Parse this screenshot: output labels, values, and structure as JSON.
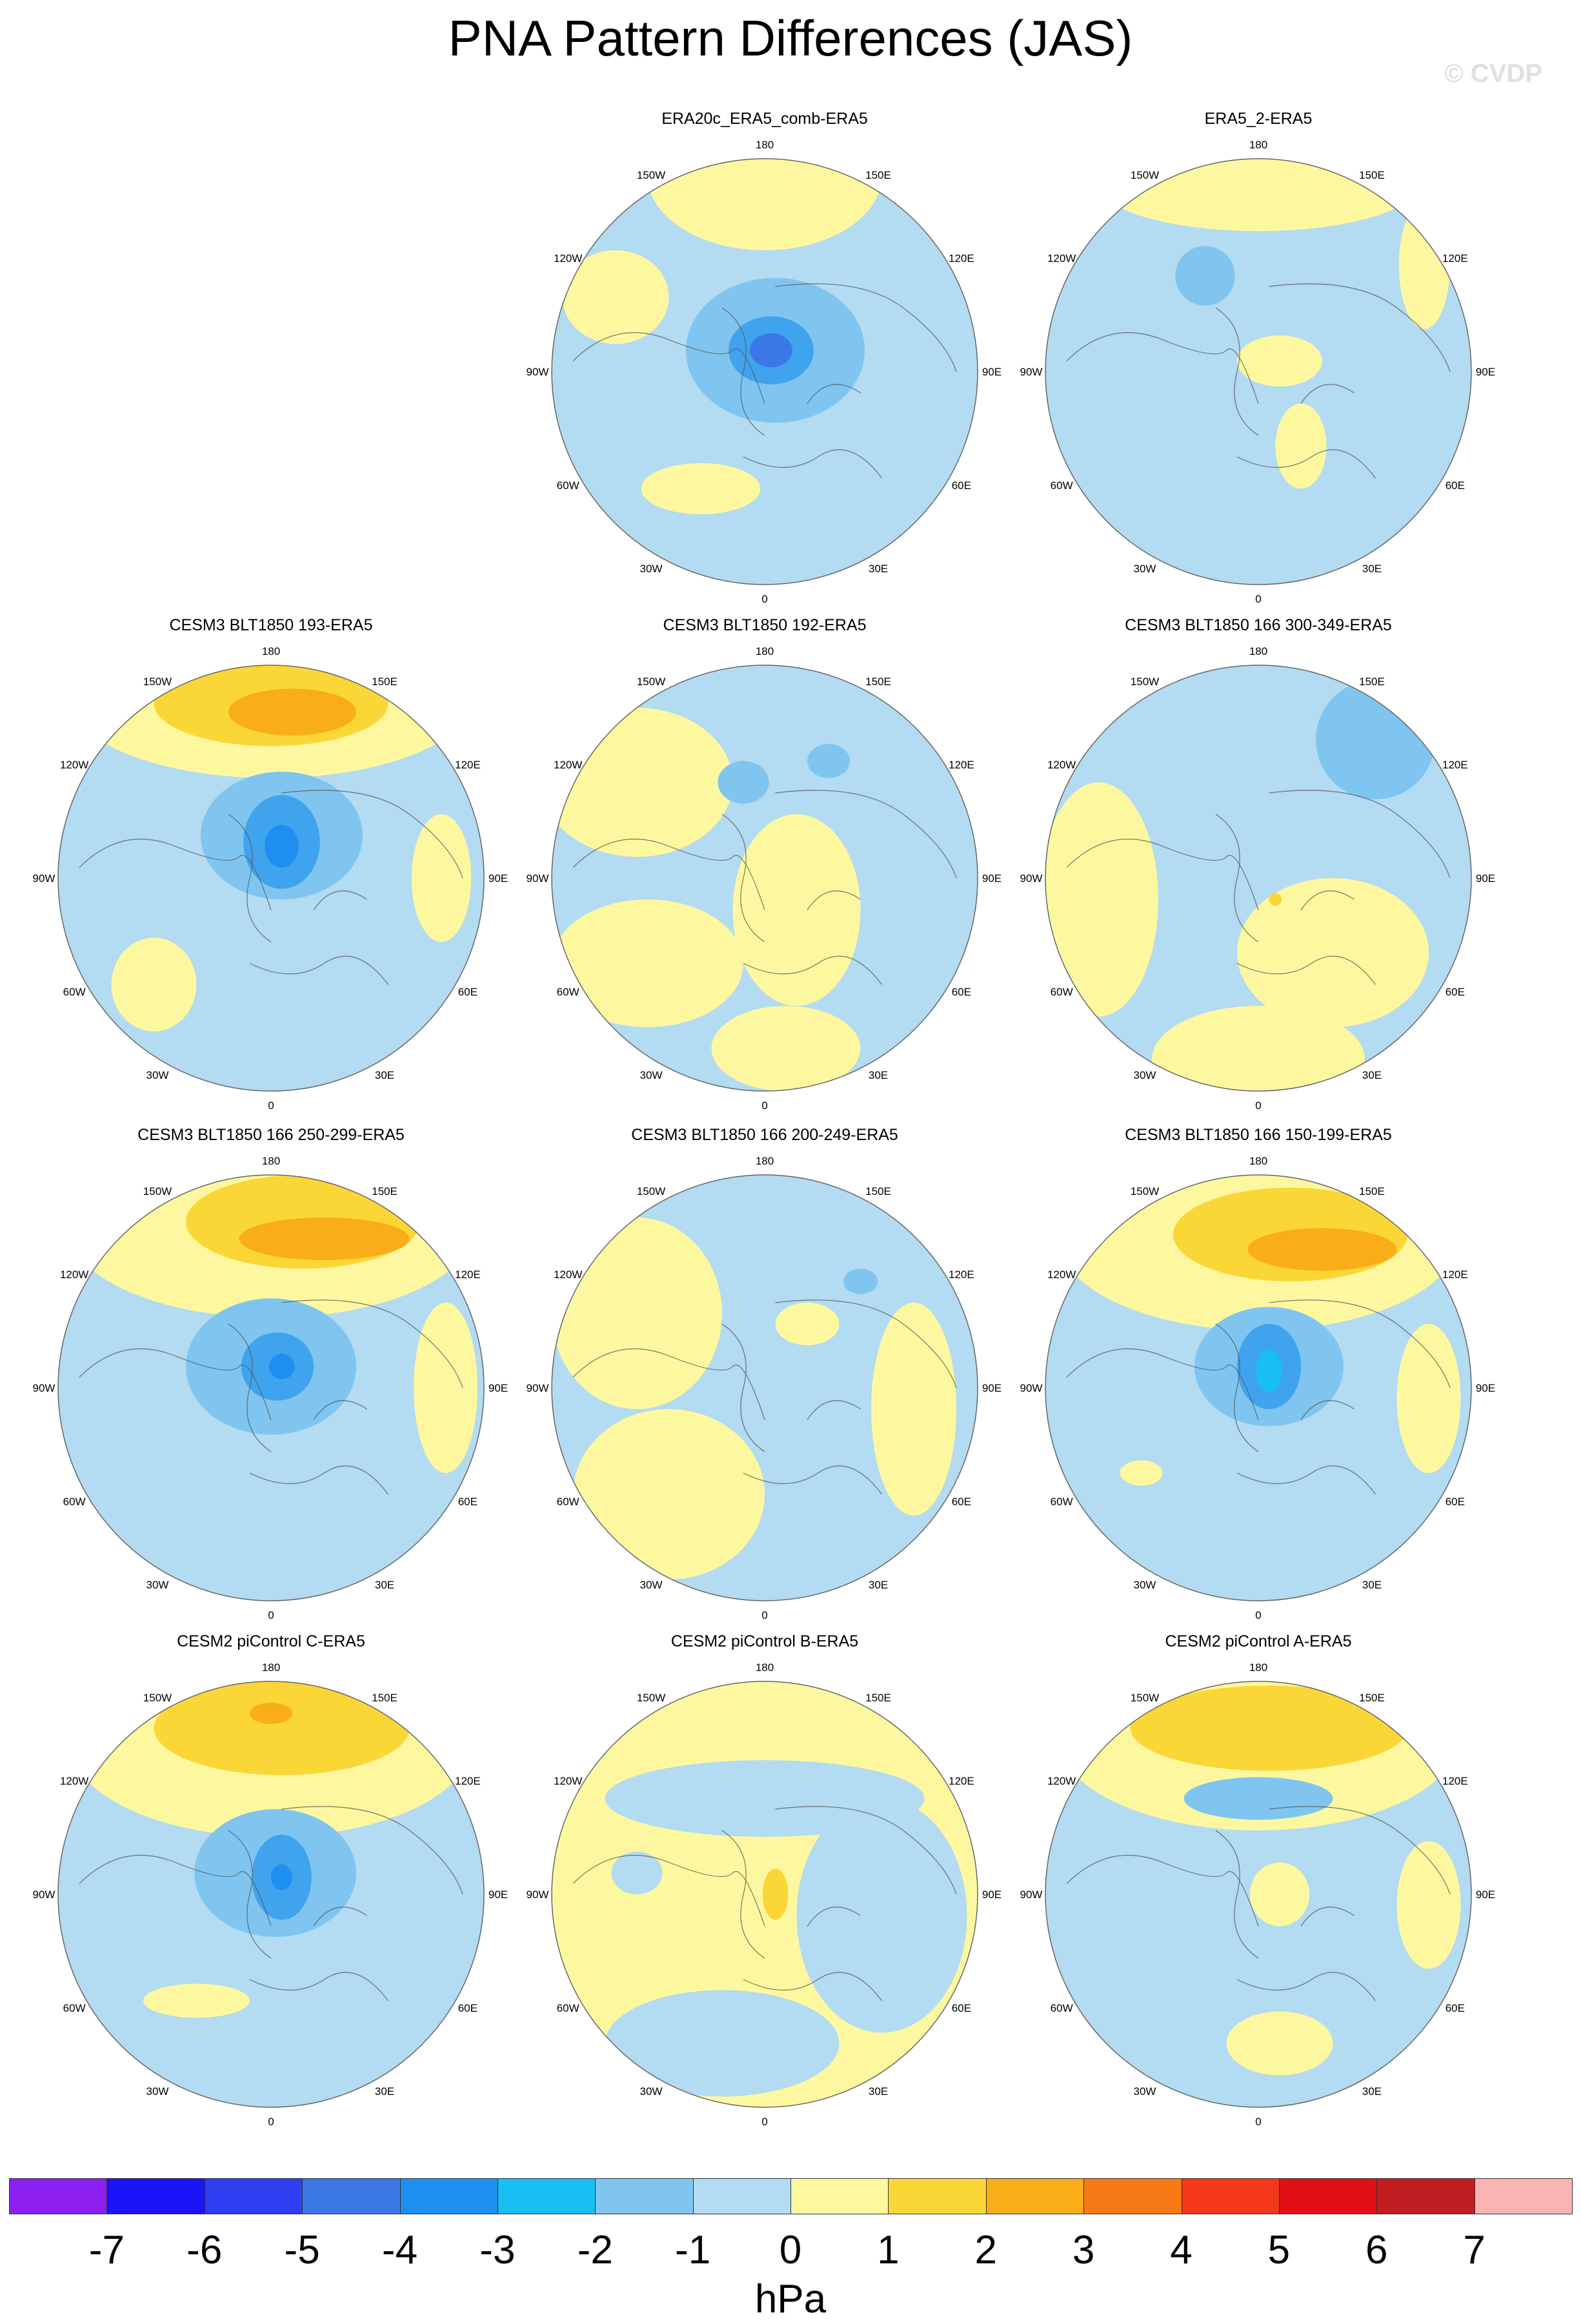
{
  "title": "PNA Pattern Differences (JAS)",
  "watermark": "© CVDP",
  "panels": [
    {
      "id": "p1",
      "title": "ERA20c_ERA5_comb-ERA5",
      "base": "#b3dbf1",
      "centers": [
        {
          "color": "#fdf8a0",
          "rx": 0.55,
          "ry": 0.35,
          "at": [
            0.0,
            -0.92
          ]
        },
        {
          "color": "#fdf8a0",
          "rx": 0.25,
          "ry": 0.22,
          "at": [
            -0.7,
            -0.35
          ]
        },
        {
          "color": "#fdf8a0",
          "rx": 0.28,
          "ry": 0.12,
          "at": [
            -0.3,
            0.55
          ]
        },
        {
          "color": "#7fc5ef",
          "rx": 0.42,
          "ry": 0.34,
          "at": [
            0.05,
            -0.1
          ]
        },
        {
          "color": "#40a3ee",
          "rx": 0.2,
          "ry": 0.16,
          "at": [
            0.03,
            -0.1
          ]
        },
        {
          "color": "#3a78e6",
          "rx": 0.1,
          "ry": 0.08,
          "at": [
            0.03,
            -0.1
          ]
        }
      ]
    },
    {
      "id": "p2",
      "title": "ERA5_2-ERA5",
      "base": "#b3dbf1",
      "centers": [
        {
          "color": "#fdf8a0",
          "rx": 0.75,
          "ry": 0.22,
          "at": [
            0.0,
            -0.88
          ]
        },
        {
          "color": "#fdf8a0",
          "rx": 0.2,
          "ry": 0.12,
          "at": [
            0.1,
            -0.05
          ]
        },
        {
          "color": "#fdf8a0",
          "rx": 0.12,
          "ry": 0.3,
          "at": [
            0.78,
            -0.5
          ]
        },
        {
          "color": "#fdf8a0",
          "rx": 0.12,
          "ry": 0.2,
          "at": [
            0.2,
            0.35
          ]
        },
        {
          "color": "#7fc5ef",
          "rx": 0.14,
          "ry": 0.14,
          "at": [
            -0.25,
            -0.45
          ]
        }
      ]
    },
    {
      "id": "p3",
      "title": "CESM3 BLT1850 193-ERA5",
      "base": "#b3dbf1",
      "centers": [
        {
          "color": "#fdf8a0",
          "rx": 0.95,
          "ry": 0.38,
          "at": [
            0.0,
            -0.85
          ]
        },
        {
          "color": "#fbd637",
          "rx": 0.55,
          "ry": 0.2,
          "at": [
            0.0,
            -0.82
          ]
        },
        {
          "color": "#f9ad18",
          "rx": 0.3,
          "ry": 0.11,
          "at": [
            0.1,
            -0.78
          ]
        },
        {
          "color": "#fdf8a0",
          "rx": 0.2,
          "ry": 0.22,
          "at": [
            -0.55,
            0.5
          ]
        },
        {
          "color": "#fdf8a0",
          "rx": 0.14,
          "ry": 0.3,
          "at": [
            0.8,
            0.0
          ]
        },
        {
          "color": "#7fc5ef",
          "rx": 0.38,
          "ry": 0.3,
          "at": [
            0.05,
            -0.2
          ]
        },
        {
          "color": "#40a3ee",
          "rx": 0.18,
          "ry": 0.22,
          "at": [
            0.05,
            -0.17
          ]
        },
        {
          "color": "#1e8ff0",
          "rx": 0.08,
          "ry": 0.1,
          "at": [
            0.05,
            -0.15
          ]
        }
      ]
    },
    {
      "id": "p4",
      "title": "CESM3 BLT1850 192-ERA5",
      "base": "#b3dbf1",
      "centers": [
        {
          "color": "#fdf8a0",
          "rx": 0.45,
          "ry": 0.35,
          "at": [
            -0.6,
            -0.45
          ]
        },
        {
          "color": "#fdf8a0",
          "rx": 0.3,
          "ry": 0.45,
          "at": [
            0.15,
            0.15
          ]
        },
        {
          "color": "#fdf8a0",
          "rx": 0.45,
          "ry": 0.3,
          "at": [
            -0.55,
            0.4
          ]
        },
        {
          "color": "#fdf8a0",
          "rx": 0.35,
          "ry": 0.2,
          "at": [
            0.1,
            0.8
          ]
        },
        {
          "color": "#7fc5ef",
          "rx": 0.12,
          "ry": 0.1,
          "at": [
            -0.1,
            -0.45
          ]
        },
        {
          "color": "#7fc5ef",
          "rx": 0.1,
          "ry": 0.08,
          "at": [
            0.3,
            -0.55
          ]
        }
      ]
    },
    {
      "id": "p5",
      "title": "CESM3 BLT1850 166 300-349-ERA5",
      "base": "#b3dbf1",
      "centers": [
        {
          "color": "#fdf8a0",
          "rx": 0.28,
          "ry": 0.55,
          "at": [
            -0.75,
            0.1
          ]
        },
        {
          "color": "#fdf8a0",
          "rx": 0.45,
          "ry": 0.35,
          "at": [
            0.35,
            0.35
          ]
        },
        {
          "color": "#fdf8a0",
          "rx": 0.5,
          "ry": 0.25,
          "at": [
            0.0,
            0.85
          ]
        },
        {
          "color": "#7fc5ef",
          "rx": 0.28,
          "ry": 0.28,
          "at": [
            0.55,
            -0.65
          ]
        },
        {
          "color": "#fbd637",
          "rx": 0.03,
          "ry": 0.03,
          "at": [
            0.08,
            0.1
          ]
        }
      ]
    },
    {
      "id": "p6",
      "title": "CESM3 BLT1850 166 250-299-ERA5",
      "base": "#b3dbf1",
      "centers": [
        {
          "color": "#fdf8a0",
          "rx": 0.95,
          "ry": 0.42,
          "at": [
            0.0,
            -0.75
          ]
        },
        {
          "color": "#fbd637",
          "rx": 0.55,
          "ry": 0.22,
          "at": [
            0.15,
            -0.78
          ]
        },
        {
          "color": "#f9ad18",
          "rx": 0.4,
          "ry": 0.1,
          "at": [
            0.25,
            -0.7
          ]
        },
        {
          "color": "#fdf8a0",
          "rx": 0.15,
          "ry": 0.4,
          "at": [
            0.82,
            0.0
          ]
        },
        {
          "color": "#7fc5ef",
          "rx": 0.4,
          "ry": 0.32,
          "at": [
            0.0,
            -0.1
          ]
        },
        {
          "color": "#40a3ee",
          "rx": 0.17,
          "ry": 0.16,
          "at": [
            0.03,
            -0.1
          ]
        },
        {
          "color": "#1e8ff0",
          "rx": 0.06,
          "ry": 0.06,
          "at": [
            0.05,
            -0.1
          ]
        }
      ]
    },
    {
      "id": "p7",
      "title": "CESM3 BLT1850 166 200-249-ERA5",
      "base": "#b3dbf1",
      "centers": [
        {
          "color": "#fdf8a0",
          "rx": 0.4,
          "ry": 0.45,
          "at": [
            -0.6,
            -0.35
          ]
        },
        {
          "color": "#fdf8a0",
          "rx": 0.45,
          "ry": 0.4,
          "at": [
            -0.45,
            0.5
          ]
        },
        {
          "color": "#fdf8a0",
          "rx": 0.2,
          "ry": 0.5,
          "at": [
            0.7,
            0.1
          ]
        },
        {
          "color": "#fdf8a0",
          "rx": 0.15,
          "ry": 0.1,
          "at": [
            0.2,
            -0.3
          ]
        },
        {
          "color": "#7fc5ef",
          "rx": 0.08,
          "ry": 0.06,
          "at": [
            0.45,
            -0.5
          ]
        }
      ]
    },
    {
      "id": "p8",
      "title": "CESM3 BLT1850 166 150-199-ERA5",
      "base": "#b3dbf1",
      "centers": [
        {
          "color": "#fdf8a0",
          "rx": 0.95,
          "ry": 0.45,
          "at": [
            0.0,
            -0.72
          ]
        },
        {
          "color": "#fbd637",
          "rx": 0.55,
          "ry": 0.22,
          "at": [
            0.15,
            -0.72
          ]
        },
        {
          "color": "#f9ad18",
          "rx": 0.35,
          "ry": 0.1,
          "at": [
            0.3,
            -0.65
          ]
        },
        {
          "color": "#fdf8a0",
          "rx": 0.15,
          "ry": 0.35,
          "at": [
            0.8,
            0.05
          ]
        },
        {
          "color": "#fdf8a0",
          "rx": 0.1,
          "ry": 0.06,
          "at": [
            -0.55,
            0.4
          ]
        },
        {
          "color": "#7fc5ef",
          "rx": 0.35,
          "ry": 0.28,
          "at": [
            0.05,
            -0.1
          ]
        },
        {
          "color": "#40a3ee",
          "rx": 0.15,
          "ry": 0.2,
          "at": [
            0.05,
            -0.1
          ]
        },
        {
          "color": "#17bff3",
          "rx": 0.06,
          "ry": 0.1,
          "at": [
            0.05,
            -0.08
          ]
        }
      ]
    },
    {
      "id": "p9",
      "title": "CESM2 piControl C-ERA5",
      "base": "#b3dbf1",
      "centers": [
        {
          "color": "#fdf8a0",
          "rx": 0.95,
          "ry": 0.45,
          "at": [
            0.0,
            -0.72
          ]
        },
        {
          "color": "#fbd637",
          "rx": 0.6,
          "ry": 0.22,
          "at": [
            0.05,
            -0.78
          ]
        },
        {
          "color": "#f9ad18",
          "rx": 0.1,
          "ry": 0.05,
          "at": [
            0.0,
            -0.85
          ]
        },
        {
          "color": "#fdf8a0",
          "rx": 0.25,
          "ry": 0.08,
          "at": [
            -0.35,
            0.5
          ]
        },
        {
          "color": "#7fc5ef",
          "rx": 0.38,
          "ry": 0.3,
          "at": [
            0.02,
            -0.1
          ]
        },
        {
          "color": "#40a3ee",
          "rx": 0.14,
          "ry": 0.2,
          "at": [
            0.05,
            -0.08
          ]
        },
        {
          "color": "#1e8ff0",
          "rx": 0.05,
          "ry": 0.06,
          "at": [
            0.05,
            -0.08
          ]
        }
      ]
    },
    {
      "id": "p10",
      "title": "CESM2 piControl B-ERA5",
      "base": "#fdf8a0",
      "centers": [
        {
          "color": "#b3dbf1",
          "rx": 0.75,
          "ry": 0.18,
          "at": [
            0.0,
            -0.45
          ]
        },
        {
          "color": "#b3dbf1",
          "rx": 0.4,
          "ry": 0.55,
          "at": [
            0.55,
            0.1
          ]
        },
        {
          "color": "#b3dbf1",
          "rx": 0.55,
          "ry": 0.25,
          "at": [
            -0.2,
            0.7
          ]
        },
        {
          "color": "#fbd637",
          "rx": 0.06,
          "ry": 0.12,
          "at": [
            0.05,
            0.0
          ]
        },
        {
          "color": "#b3dbf1",
          "rx": 0.12,
          "ry": 0.1,
          "at": [
            -0.6,
            -0.1
          ]
        }
      ]
    },
    {
      "id": "p11",
      "title": "CESM2 piControl A-ERA5",
      "base": "#b3dbf1",
      "centers": [
        {
          "color": "#fdf8a0",
          "rx": 0.95,
          "ry": 0.45,
          "at": [
            0.0,
            -0.75
          ]
        },
        {
          "color": "#fbd637",
          "rx": 0.65,
          "ry": 0.2,
          "at": [
            0.05,
            -0.78
          ]
        },
        {
          "color": "#fdf8a0",
          "rx": 0.14,
          "ry": 0.15,
          "at": [
            0.1,
            0.0
          ]
        },
        {
          "color": "#fdf8a0",
          "rx": 0.25,
          "ry": 0.15,
          "at": [
            0.1,
            0.7
          ]
        },
        {
          "color": "#fdf8a0",
          "rx": 0.15,
          "ry": 0.3,
          "at": [
            0.8,
            0.05
          ]
        },
        {
          "color": "#7fc5ef",
          "rx": 0.35,
          "ry": 0.1,
          "at": [
            0.0,
            -0.45
          ]
        }
      ]
    }
  ],
  "map_labels": {
    "top": "180",
    "bottom": "0",
    "left": "90W",
    "right": "90E",
    "ul1": "150W",
    "ur1": "150E",
    "ul2": "120W",
    "ur2": "120E",
    "ll1": "60W",
    "lr1": "60E",
    "ll2": "30W",
    "lr2": "30E"
  },
  "colorbar": {
    "colors": [
      "#8b1ff0",
      "#1a14f7",
      "#2e3ef0",
      "#3a78e6",
      "#1e8ff0",
      "#17bff3",
      "#7fc5ef",
      "#b3dbf1",
      "#fdf8a0",
      "#fbd637",
      "#f9ad18",
      "#f77a16",
      "#f5371a",
      "#e11016",
      "#c11e21",
      "#fbb3b3"
    ],
    "ticks": [
      "-7",
      "-6",
      "-5",
      "-4",
      "-3",
      "-2",
      "-1",
      "0",
      "1",
      "2",
      "3",
      "4",
      "5",
      "6",
      "7"
    ],
    "units": "hPa"
  }
}
